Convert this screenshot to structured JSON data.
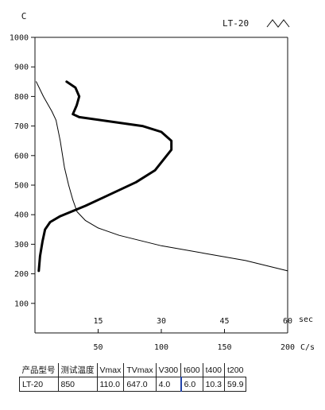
{
  "chart_data": {
    "type": "line",
    "temp_axis": {
      "unit": "C",
      "ticks": [
        100,
        200,
        300,
        400,
        500,
        600,
        700,
        800,
        900,
        1000
      ],
      "ylim": [
        0,
        1000
      ]
    },
    "time_axis": {
      "unit": "sec",
      "ticks": [
        15,
        30,
        45,
        60
      ],
      "xlim": [
        0,
        60
      ]
    },
    "rate_axis": {
      "unit": "C/s",
      "ticks": [
        50,
        100,
        150,
        200
      ],
      "xlim": [
        0,
        200
      ]
    },
    "grid": false,
    "corner_label": "LT-20",
    "series": [
      {
        "axis": "time",
        "points": [
          [
            0.3,
            850
          ],
          [
            2,
            800
          ],
          [
            4,
            750
          ],
          [
            5,
            720
          ],
          [
            6,
            650
          ],
          [
            7,
            560
          ],
          [
            8,
            500
          ],
          [
            9,
            450
          ],
          [
            10,
            410
          ],
          [
            12,
            380
          ],
          [
            15,
            355
          ],
          [
            20,
            330
          ],
          [
            30,
            295
          ],
          [
            40,
            270
          ],
          [
            50,
            245
          ],
          [
            60,
            210
          ]
        ]
      },
      {
        "axis": "rate",
        "points": [
          [
            3,
            210
          ],
          [
            4,
            260
          ],
          [
            6,
            310
          ],
          [
            8,
            350
          ],
          [
            12,
            375
          ],
          [
            20,
            395
          ],
          [
            40,
            430
          ],
          [
            60,
            470
          ],
          [
            80,
            510
          ],
          [
            95,
            550
          ],
          [
            108,
            620
          ],
          [
            108,
            650
          ],
          [
            100,
            680
          ],
          [
            85,
            700
          ],
          [
            60,
            715
          ],
          [
            35,
            730
          ],
          [
            30,
            740
          ],
          [
            33,
            770
          ],
          [
            35,
            800
          ],
          [
            32,
            830
          ],
          [
            25,
            850
          ]
        ]
      }
    ]
  },
  "icons": {
    "corner_icon": "wave-icon"
  },
  "table": {
    "headers": [
      "产品型号",
      "测试温度",
      "Vmax",
      "TVmax",
      "V300",
      "t600",
      "t400",
      "t200"
    ],
    "rows": [
      [
        "LT-20",
        "850",
        "110.0",
        "647.0",
        "4.0",
        "6.0",
        "10.3",
        "59.9"
      ]
    ]
  }
}
